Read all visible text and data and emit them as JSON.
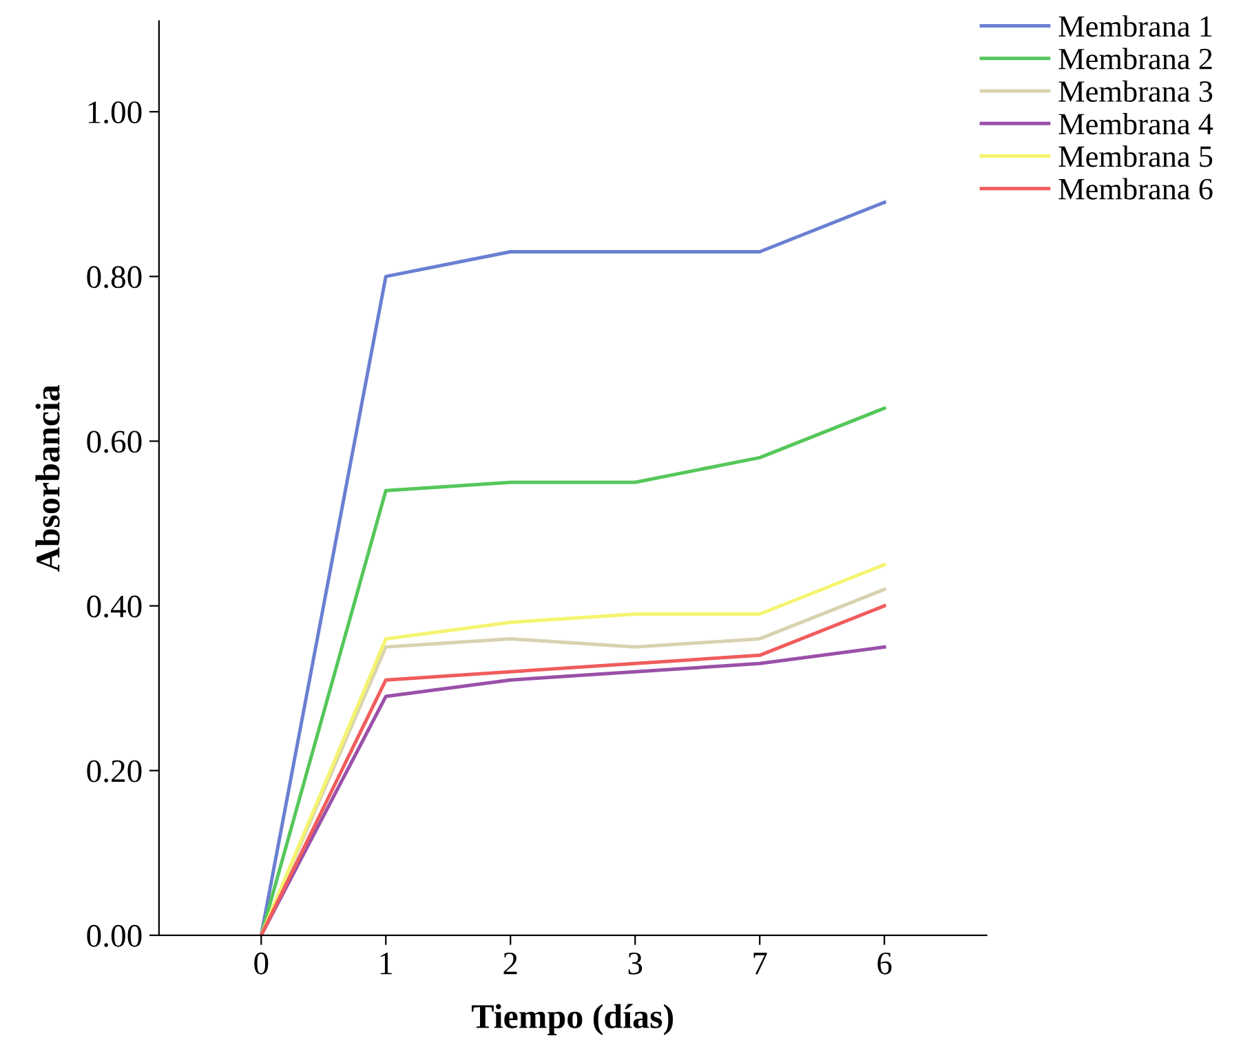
{
  "chart_data": {
    "type": "line",
    "xlabel": "Tiempo (días)",
    "ylabel": "Absorbancia",
    "categories": [
      "0",
      "1",
      "2",
      "3",
      "7",
      "6"
    ],
    "series": [
      {
        "name": "Membrana 1",
        "color": "#6a7fd2",
        "values": [
          0,
          0.8,
          0.83,
          0.83,
          0.83,
          0.89
        ]
      },
      {
        "name": "Membrana 2",
        "color": "#55c75a",
        "values": [
          0,
          0.54,
          0.55,
          0.55,
          0.58,
          0.64
        ]
      },
      {
        "name": "Membrana 3",
        "color": "#d9d2b0",
        "values": [
          0,
          0.35,
          0.36,
          0.35,
          0.36,
          0.42
        ]
      },
      {
        "name": "Membrana 4",
        "color": "#9a50a8",
        "values": [
          0,
          0.29,
          0.31,
          0.32,
          0.33,
          0.35
        ]
      },
      {
        "name": "Membrana 5",
        "color": "#f4f470",
        "values": [
          0,
          0.36,
          0.38,
          0.39,
          0.39,
          0.45
        ]
      },
      {
        "name": "Membrana 6",
        "color": "#f05c5c",
        "values": [
          0,
          0.31,
          0.32,
          0.33,
          0.34,
          0.4
        ]
      }
    ],
    "ylim": [
      0,
      1.11
    ],
    "yticks": [
      {
        "value": 0,
        "label": "0.00"
      },
      {
        "value": 0.2,
        "label": "0.20"
      },
      {
        "value": 0.4,
        "label": "0.40"
      },
      {
        "value": 0.6,
        "label": "0.60"
      },
      {
        "value": 0.8,
        "label": "0.80"
      },
      {
        "value": 1.0,
        "label": "1.00"
      }
    ],
    "legend": "top right",
    "grid": false,
    "marker": "none",
    "line_style": "solid"
  }
}
